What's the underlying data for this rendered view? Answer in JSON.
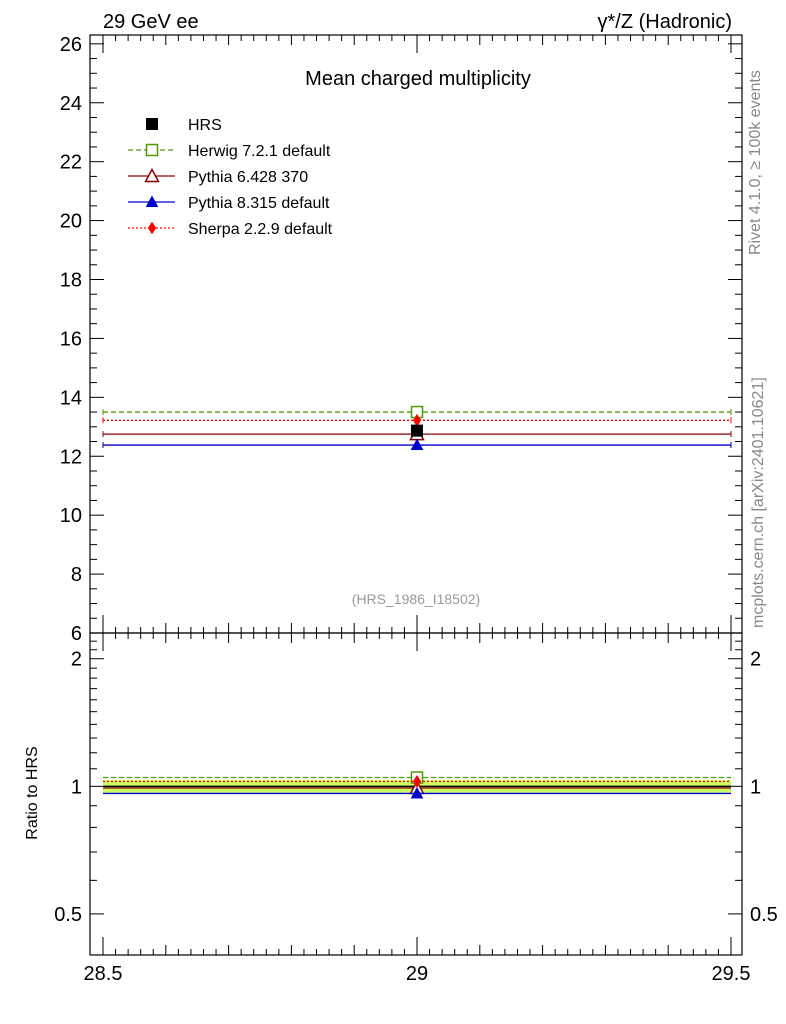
{
  "header": {
    "left_label": "29 GeV ee",
    "right_label": "γ*/Z (Hadronic)"
  },
  "side_labels": {
    "rivet": "Rivet 4.1.0, ≥ 100k events",
    "mcplots": "mcplots.cern.ch [arXiv:2401.10621]"
  },
  "chart_data": {
    "type": "scatter",
    "title": "Mean charged multiplicity",
    "annotation": "(HRS_1986_I18502)",
    "xlabel": "",
    "ylabel": "",
    "ratio_ylabel": "Ratio to HRS",
    "xlim": [
      28.5,
      29.5
    ],
    "ylim": [
      6,
      26.3
    ],
    "ratio_ylim": [
      0.4,
      2.3
    ],
    "x_ticks": [
      "28.5",
      "29",
      "29.5"
    ],
    "y_ticks": [
      "6",
      "8",
      "10",
      "12",
      "14",
      "16",
      "18",
      "20",
      "22",
      "24",
      "26"
    ],
    "ratio_ticks": [
      "0.5",
      "1",
      "2"
    ],
    "x": [
      29
    ],
    "bin_edges": [
      28.5,
      29.5
    ],
    "data_series": {
      "name": "HRS",
      "value": 12.87,
      "color": "#000000"
    },
    "series": [
      {
        "name": "Herwig 7.2.1 default",
        "value": 13.5,
        "ratio": 1.049,
        "color": "#4e9a06",
        "line": "dashed",
        "marker": "open-square"
      },
      {
        "name": "Pythia 6.428 370",
        "value": 12.75,
        "ratio": 0.991,
        "color": "#8b0000",
        "line": "solid",
        "marker": "open-triangle"
      },
      {
        "name": "Pythia 8.315 default",
        "value": 12.38,
        "ratio": 0.962,
        "color": "#0000cc",
        "line": "solid",
        "marker": "filled-triangle"
      },
      {
        "name": "Sherpa 2.2.9 default",
        "value": 13.22,
        "ratio": 1.027,
        "color": "#ff0000",
        "line": "dotted",
        "marker": "filled-diamond"
      }
    ],
    "ratio_band": {
      "lower": 0.965,
      "upper": 1.035,
      "color": "#ccff66"
    },
    "legend_position": "top-left"
  }
}
